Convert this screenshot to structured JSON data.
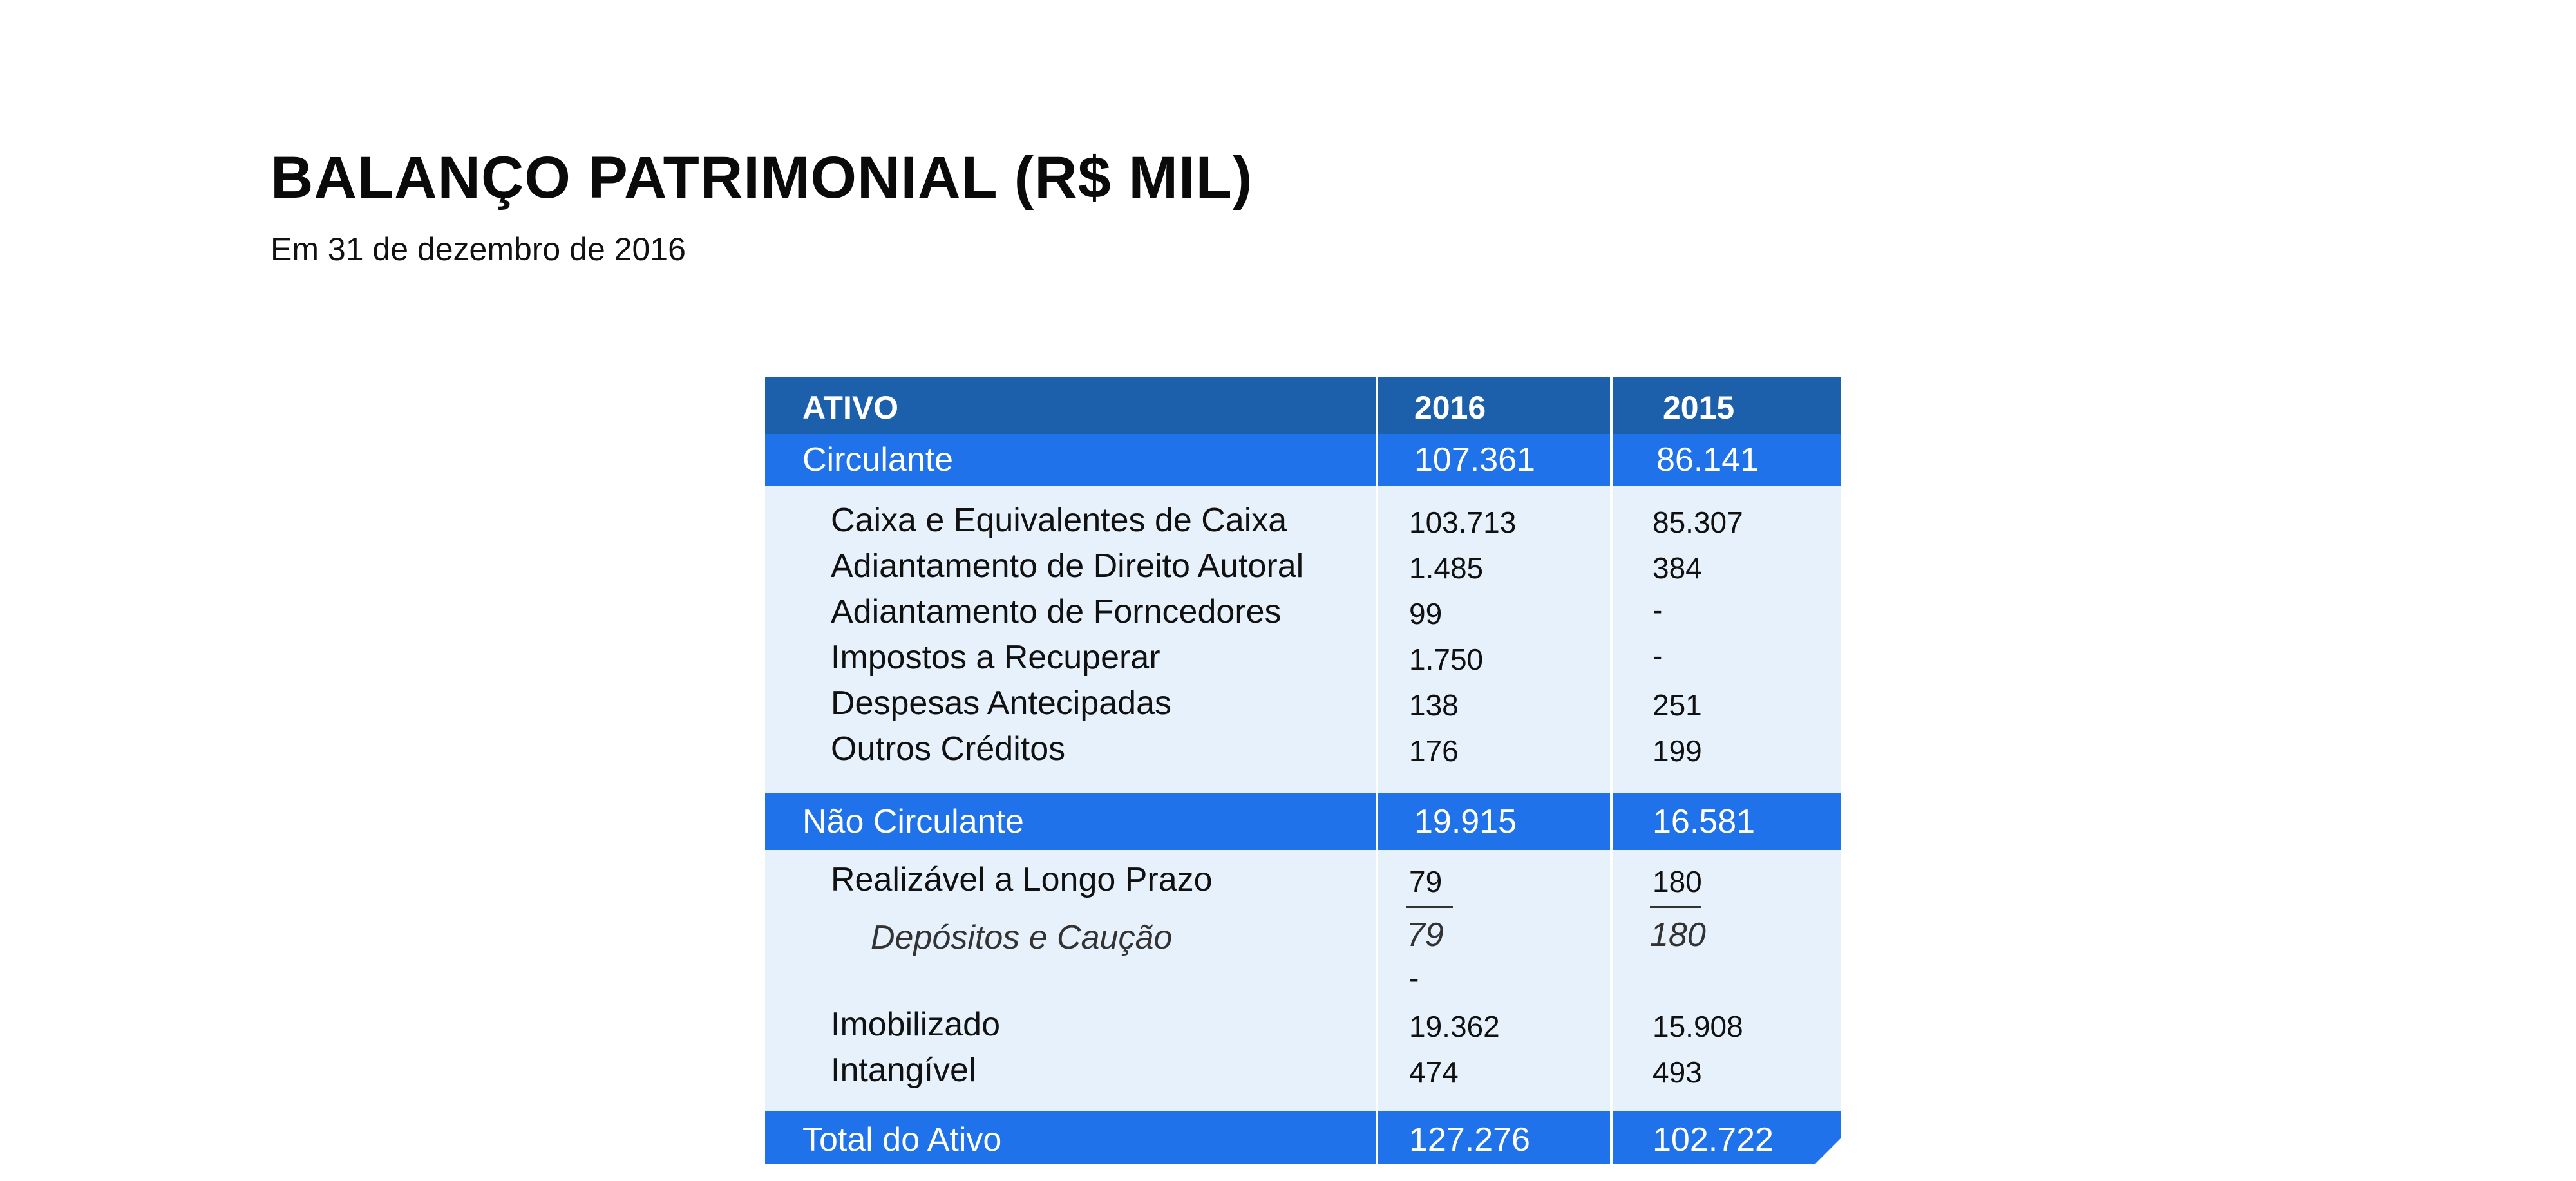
{
  "header": {
    "title": "BALANÇO PATRIMONIAL (R$ MIL)",
    "subtitle": "Em 31 de dezembro de 2016"
  },
  "colors": {
    "header_band": "#1c5fab",
    "section_band": "#1f72ea",
    "row_bg": "#e7f1fc",
    "text_dark": "#111111",
    "text_light": "#ffffff"
  },
  "table": {
    "columns": [
      "ATIVO",
      "2016",
      "2015"
    ],
    "circulante": {
      "label": "Circulante",
      "v2016": "107.361",
      "v2015": "86.141",
      "items": [
        {
          "label": "Caixa e Equivalentes de Caixa",
          "v2016": "103.713",
          "v2015": "85.307"
        },
        {
          "label": "Adiantamento de Direito Autoral",
          "v2016": "1.485",
          "v2015": "384"
        },
        {
          "label": "Adiantamento de Forncedores",
          "v2016": "99",
          "v2015": "-"
        },
        {
          "label": "Impostos a Recuperar",
          "v2016": "1.750",
          "v2015": "-"
        },
        {
          "label": "Despesas Antecipadas",
          "v2016": "138",
          "v2015": "251"
        },
        {
          "label": "Outros Créditos",
          "v2016": "176",
          "v2015": "199"
        }
      ]
    },
    "nao_circulante": {
      "label": "Não Circulante",
      "v2016": "19.915",
      "v2015": "16.581",
      "realizavel": {
        "label": "Realizável a Longo Prazo",
        "v2016": "79",
        "v2015": "180"
      },
      "depositos": {
        "label": "Depósitos e Caução",
        "v2016": "79",
        "v2015": "180"
      },
      "dash": "-",
      "imobilizado": {
        "label": "Imobilizado",
        "v2016": "19.362",
        "v2015": "15.908"
      },
      "intangivel": {
        "label": "Intangível",
        "v2016": "474",
        "v2015": "493"
      }
    },
    "total": {
      "label": "Total do Ativo",
      "v2016": "127.276",
      "v2015": "102.722"
    }
  }
}
